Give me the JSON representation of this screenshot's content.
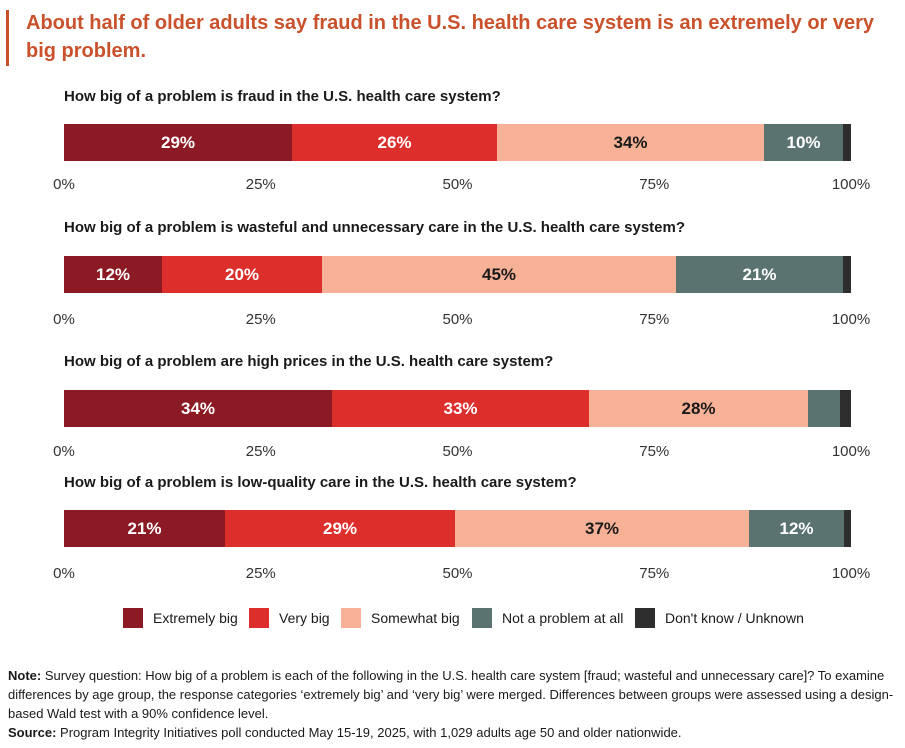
{
  "title": "About half of older adults say fraud in the U.S. health care system is an extremely or very big problem.",
  "colors": {
    "title": "#c9522c",
    "categories": [
      "#8c1a24",
      "#dc2e2b",
      "#f7b196",
      "#5a7270",
      "#2e2e2e"
    ],
    "label_light": "#ffffff",
    "label_dark": "#1a1a1a"
  },
  "chart_data": [
    {
      "type": "bar",
      "orientation": "horizontal-stacked-100",
      "title": "How big of a problem is fraud in the U.S. health care system?",
      "categories": [
        "Extremely big",
        "Very big",
        "Somewhat big",
        "Not a problem at all",
        "Don't know / Unknown"
      ],
      "values": [
        29,
        26,
        34,
        10,
        1
      ],
      "labels": [
        "29%",
        "26%",
        "34%",
        "10%",
        ""
      ],
      "xlim": [
        0,
        100
      ],
      "xticks": [
        "0%",
        "25%",
        "50%",
        "75%",
        "100%"
      ]
    },
    {
      "type": "bar",
      "orientation": "horizontal-stacked-100",
      "title": "How big of a problem is wasteful and unnecessary care in the U.S. health care system?",
      "categories": [
        "Extremely big",
        "Very big",
        "Somewhat big",
        "Not a problem at all",
        "Don't know / Unknown"
      ],
      "values": [
        12.4,
        20.4,
        45,
        21.2,
        1
      ],
      "labels": [
        "12%",
        "20%",
        "45%",
        "21%",
        ""
      ],
      "xlim": [
        0,
        100
      ],
      "xticks": [
        "0%",
        "25%",
        "50%",
        "75%",
        "100%"
      ]
    },
    {
      "type": "bar",
      "orientation": "horizontal-stacked-100",
      "title": "How big of a problem are high prices in the U.S. health care system?",
      "categories": [
        "Extremely big",
        "Very big",
        "Somewhat big",
        "Not a problem at all",
        "Don't know / Unknown"
      ],
      "values": [
        34,
        32.7,
        27.8,
        4.1,
        1.4
      ],
      "labels": [
        "34%",
        "33%",
        "28%",
        "",
        ""
      ],
      "xlim": [
        0,
        100
      ],
      "xticks": [
        "0%",
        "25%",
        "50%",
        "75%",
        "100%"
      ]
    },
    {
      "type": "bar",
      "orientation": "horizontal-stacked-100",
      "title": "How big of a problem is low-quality care in the U.S. health care system?",
      "categories": [
        "Extremely big",
        "Very big",
        "Somewhat big",
        "Not a problem at all",
        "Don't know / Unknown"
      ],
      "values": [
        20.5,
        29.2,
        37.3,
        12.1,
        0.9
      ],
      "labels": [
        "21%",
        "29%",
        "37%",
        "12%",
        ""
      ],
      "xlim": [
        0,
        100
      ],
      "xticks": [
        "0%",
        "25%",
        "50%",
        "75%",
        "100%"
      ]
    }
  ],
  "legend": [
    "Extremely big",
    "Very big",
    "Somewhat big",
    "Not a problem at all",
    "Don't know / Unknown"
  ],
  "note": {
    "note_label": "Note:",
    "note_text": " Survey question: How big of a problem is each of the following in the U.S. health care system [fraud; wasteful and unnecessary care]? To examine differences by age group, the response categories ‘extremely big’ and ‘very big’ were merged. Differences between groups were assessed using a design-based Wald test with a 90% confidence level.",
    "source_label": "Source:",
    "source_text": " Program Integrity Initiatives poll conducted May 15-19, 2025, with 1,029 adults age 50 and older nationwide."
  }
}
